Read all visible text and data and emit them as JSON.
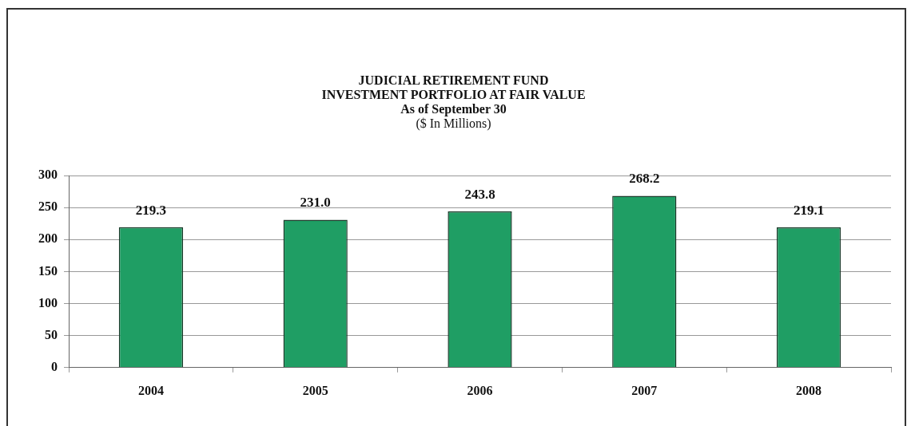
{
  "chart_data": {
    "type": "bar",
    "title": "JUDICIAL RETIREMENT FUND\nINVESTMENT PORTFOLIO AT  FAIR VALUE",
    "subtitle": "As of September 30",
    "annotations": [
      "($ In Millions)"
    ],
    "categories": [
      "2004",
      "2005",
      "2006",
      "2007",
      "2008"
    ],
    "values": [
      219.3,
      231.0,
      243.8,
      268.2,
      219.1
    ],
    "value_labels": [
      "219.3",
      "231.0",
      "243.8",
      "268.2",
      "219.1"
    ],
    "color": "#1f9e64",
    "ylim": [
      0,
      300
    ],
    "yticks": [
      0,
      50,
      100,
      150,
      200,
      250,
      300
    ],
    "grid": "y",
    "legend": false
  }
}
